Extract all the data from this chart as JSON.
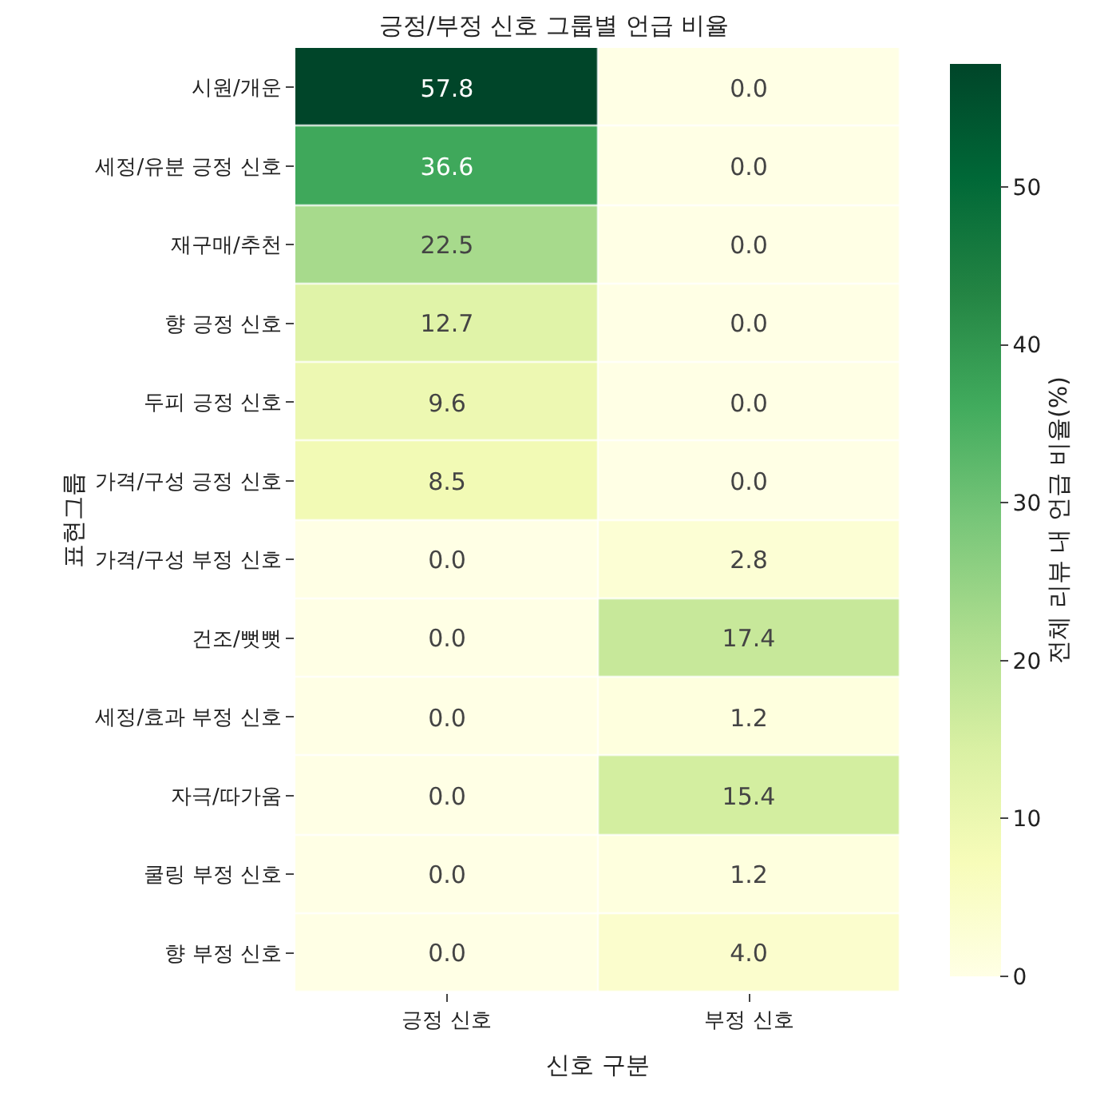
{
  "chart_data": {
    "type": "heatmap",
    "title": "긍정/부정 신호 그룹별 언급 비율",
    "xlabel": "신호 구분",
    "ylabel": "표현그룹",
    "clabel": "전체 리뷰 내 언급 비율(%)",
    "categories": [
      "긍정 신호",
      "부정 신호"
    ],
    "y_categories": [
      "시원/개운",
      "세정/유분 긍정 신호",
      "재구매/추천",
      "향 긍정 신호",
      "두피 긍정 신호",
      "가격/구성 긍정 신호",
      "가격/구성 부정 신호",
      "건조/뻣뻣",
      "세정/효과 부정 신호",
      "자극/따가움",
      "쿨링 부정 신호",
      "향 부정 신호"
    ],
    "cells": [
      [
        57.8,
        0.0
      ],
      [
        36.6,
        0.0
      ],
      [
        22.5,
        0.0
      ],
      [
        12.7,
        0.0
      ],
      [
        9.6,
        0.0
      ],
      [
        8.5,
        0.0
      ],
      [
        0.0,
        2.8
      ],
      [
        0.0,
        17.4
      ],
      [
        0.0,
        1.2
      ],
      [
        0.0,
        15.4
      ],
      [
        0.0,
        1.2
      ],
      [
        0.0,
        4.0
      ]
    ],
    "cell_labels": [
      [
        "57.8",
        "0.0"
      ],
      [
        "36.6",
        "0.0"
      ],
      [
        "22.5",
        "0.0"
      ],
      [
        "12.7",
        "0.0"
      ],
      [
        "9.6",
        "0.0"
      ],
      [
        "8.5",
        "0.0"
      ],
      [
        "0.0",
        "2.8"
      ],
      [
        "0.0",
        "17.4"
      ],
      [
        "0.0",
        "1.2"
      ],
      [
        "0.0",
        "15.4"
      ],
      [
        "0.0",
        "1.2"
      ],
      [
        "0.0",
        "4.0"
      ]
    ],
    "clim": [
      0,
      57.8
    ],
    "cticks": [
      0,
      10,
      20,
      30,
      40,
      50
    ]
  }
}
